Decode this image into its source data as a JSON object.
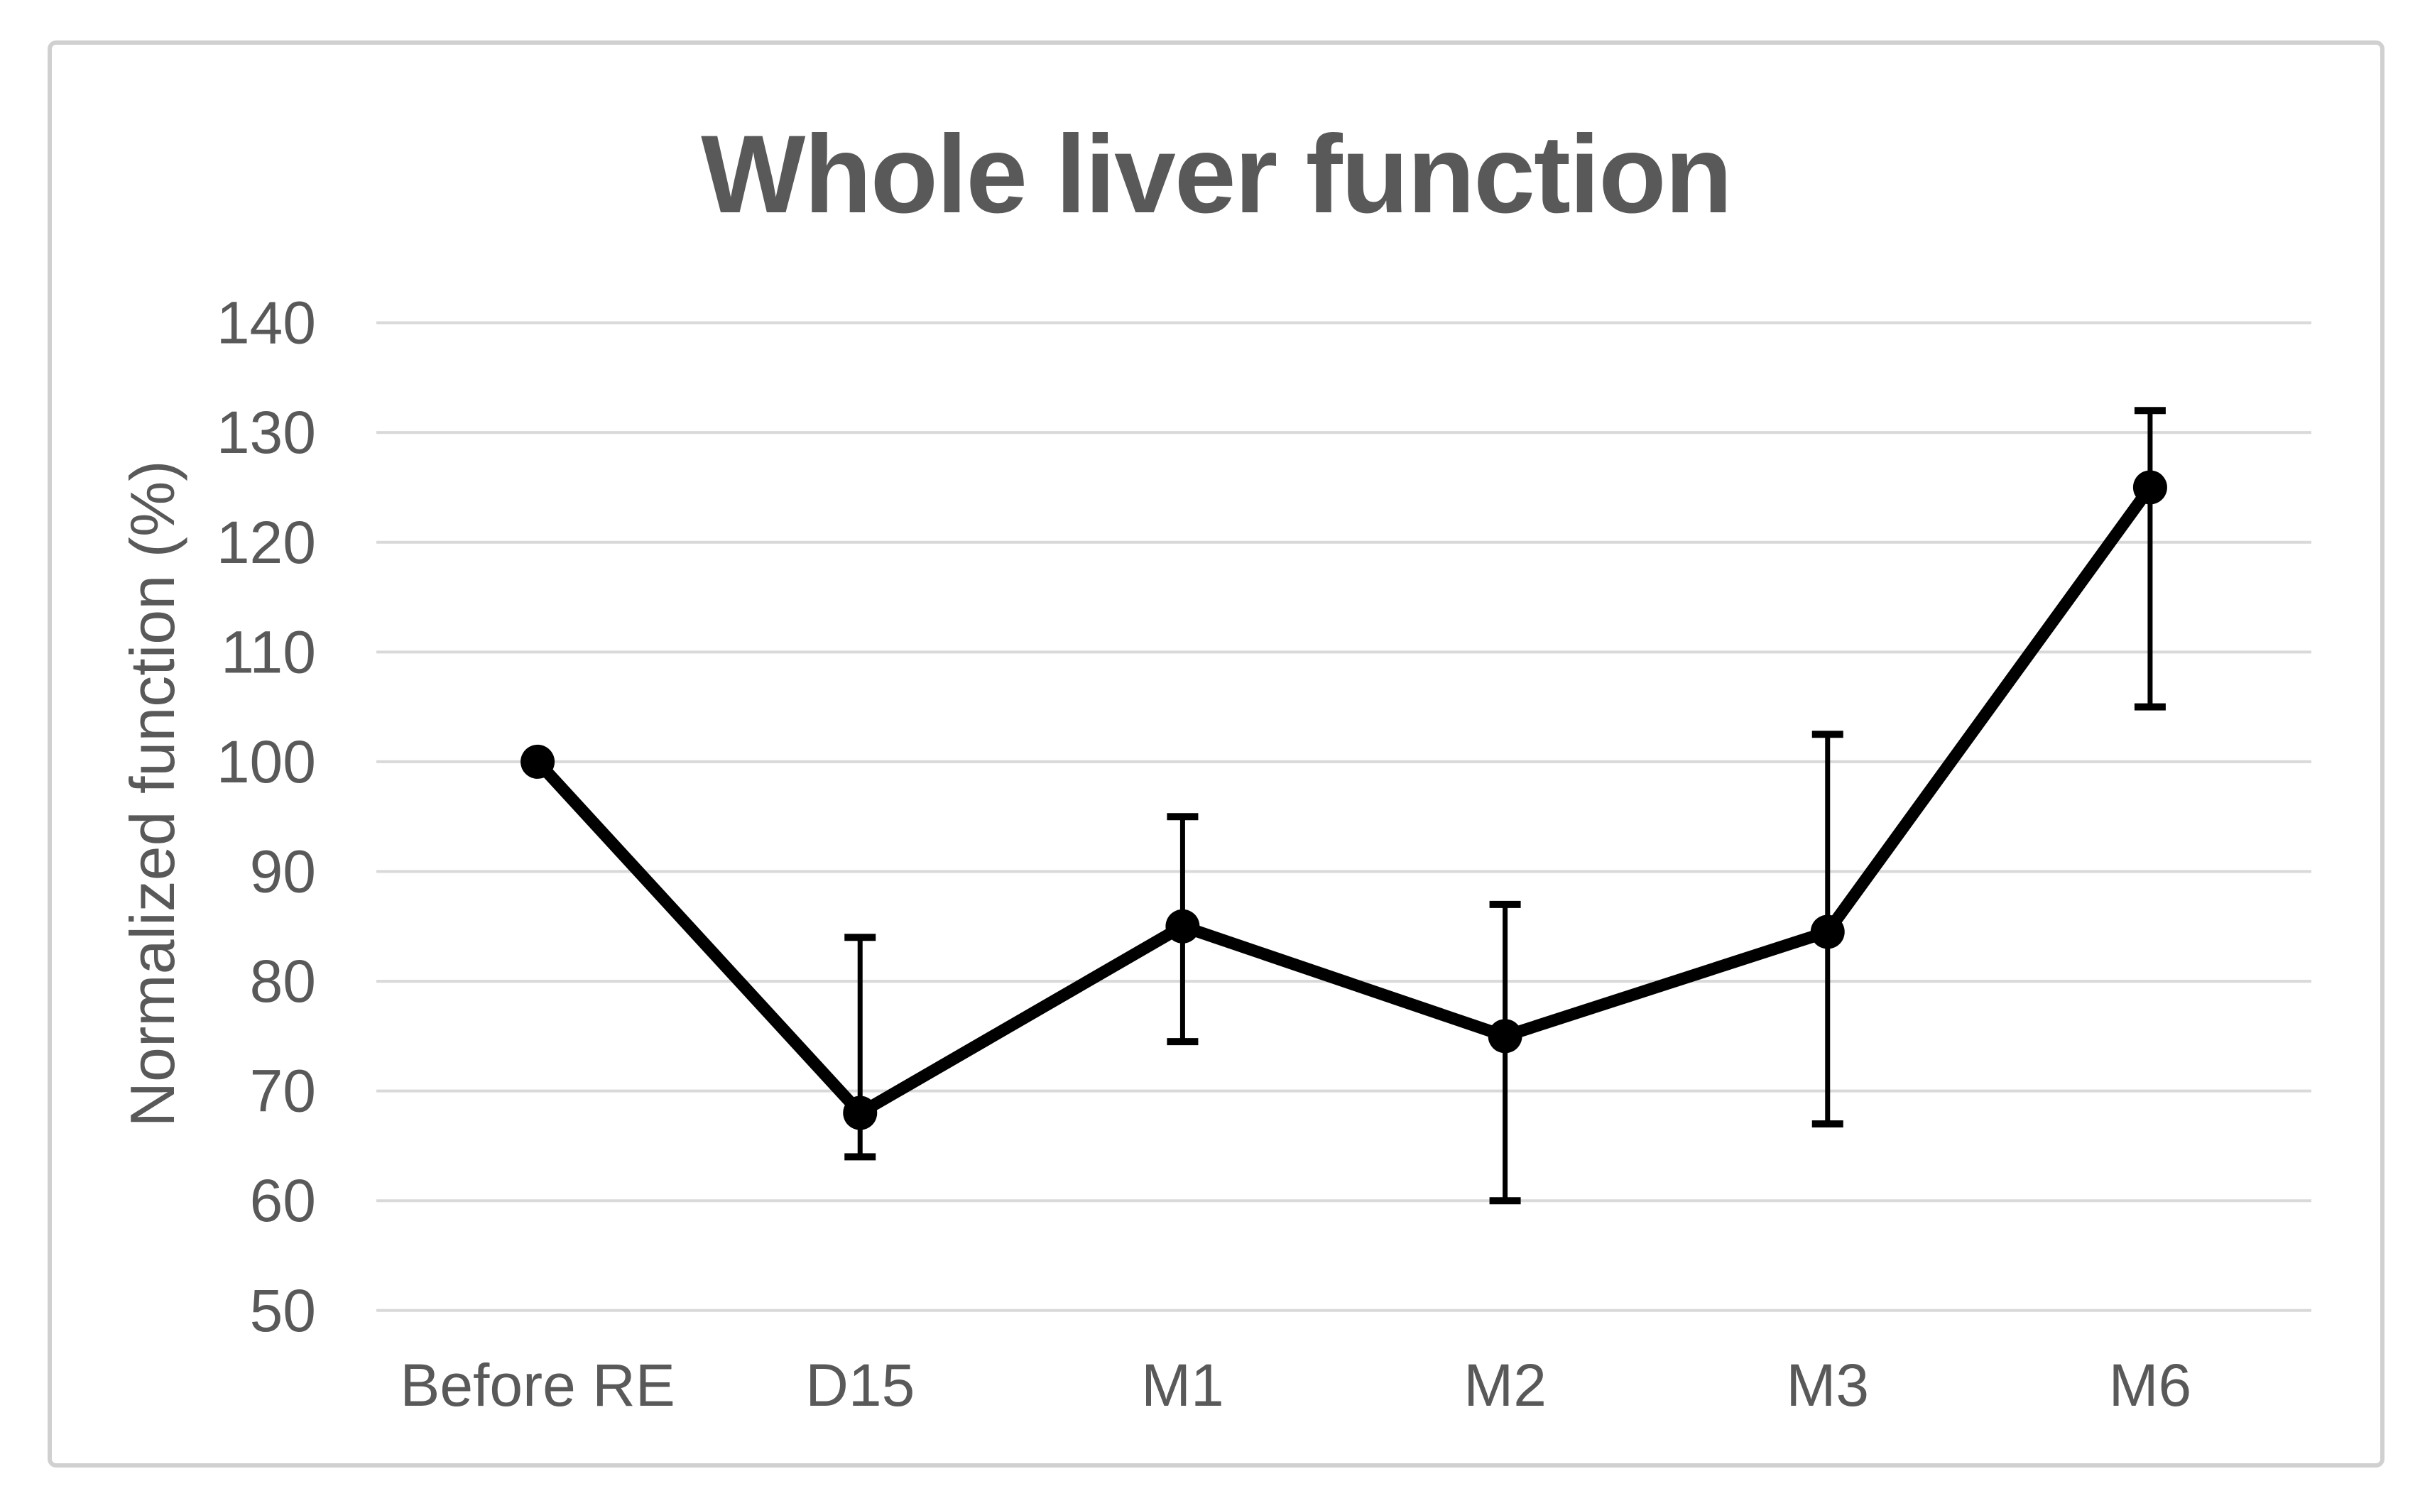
{
  "figure": {
    "background": "#ffffff",
    "border_color": "#d0d0d0"
  },
  "chart_data": {
    "type": "line",
    "title": "Whole liver function",
    "xlabel": "",
    "ylabel": "Normalized function (%)",
    "categories": [
      "Before RE",
      "D15",
      "M1",
      "M2",
      "M3",
      "M6"
    ],
    "series": [
      {
        "name": "Whole liver function",
        "values": [
          100,
          68,
          85,
          75,
          84.5,
          125
        ],
        "error_low": [
          null,
          64,
          74.5,
          60,
          67,
          105
        ],
        "error_high": [
          null,
          84,
          95,
          87,
          102.5,
          132
        ]
      }
    ],
    "ylim": [
      50,
      140
    ],
    "yticks": [
      140,
      130,
      120,
      110,
      100,
      90,
      80,
      70,
      60,
      50
    ],
    "grid": "horizontal-only",
    "legend_position": "none",
    "styles": {
      "line_color": "#000000",
      "marker": "filled-circle",
      "gridline_color": "#d9d9d9",
      "text_color": "#595959",
      "title_color": "#595959"
    }
  }
}
